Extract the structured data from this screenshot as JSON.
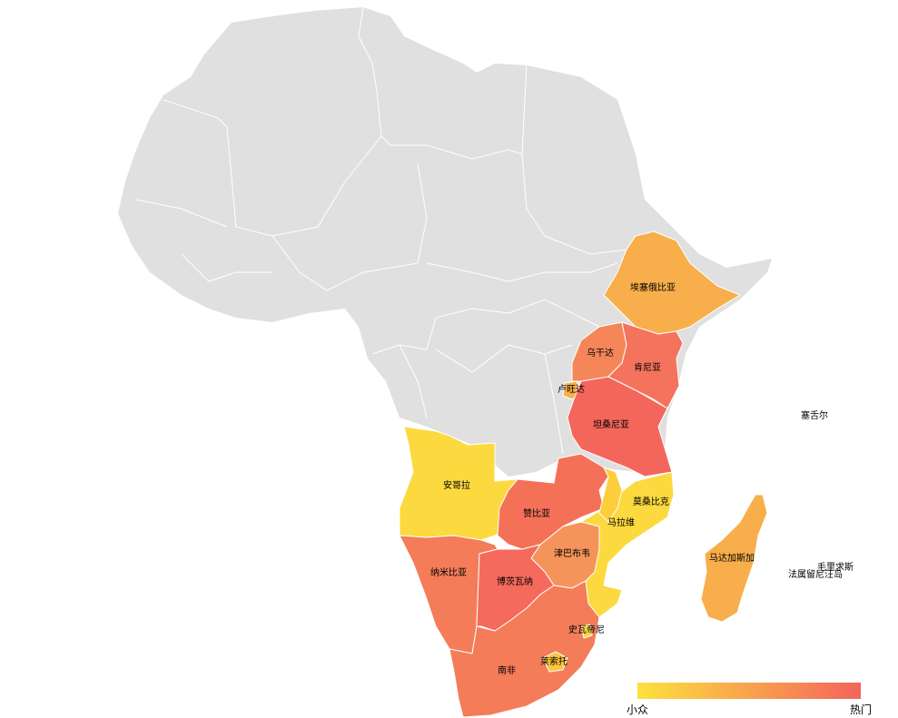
{
  "legend": {
    "low_label": "小众",
    "high_label": "热门",
    "colors": [
      "#fce13e",
      "#f4645c"
    ]
  },
  "countries": [
    {
      "id": "ethiopia",
      "name": "埃塞俄比亚",
      "color": "#f8ae4a"
    },
    {
      "id": "uganda",
      "name": "乌干达",
      "color": "#f4865a"
    },
    {
      "id": "kenya",
      "name": "肯尼亚",
      "color": "#f3735c"
    },
    {
      "id": "rwanda",
      "name": "卢旺达",
      "color": "#f8b14a"
    },
    {
      "id": "tanzania",
      "name": "坦桑尼亚",
      "color": "#f4665c"
    },
    {
      "id": "angola",
      "name": "安哥拉",
      "color": "#fcd93e"
    },
    {
      "id": "zambia",
      "name": "赞比亚",
      "color": "#f47158"
    },
    {
      "id": "mozambique",
      "name": "莫桑比克",
      "color": "#fcd93e"
    },
    {
      "id": "malawi",
      "name": "马拉维",
      "color": "#fcce3c"
    },
    {
      "id": "zimbabwe",
      "name": "津巴布韦",
      "color": "#f5945a"
    },
    {
      "id": "namibia",
      "name": "纳米比亚",
      "color": "#f47c58"
    },
    {
      "id": "botswana",
      "name": "博茨瓦纳",
      "color": "#f46a5c"
    },
    {
      "id": "south_africa",
      "name": "南非",
      "color": "#f47c58"
    },
    {
      "id": "eswatini",
      "name": "史瓦帝尼",
      "color": "#fcd63e"
    },
    {
      "id": "lesotho",
      "name": "莱索托",
      "color": "#fcc63c"
    },
    {
      "id": "madagascar",
      "name": "马达加斯加",
      "color": "#f8ae4a"
    },
    {
      "id": "seychelles",
      "name": "塞舌尔",
      "color": ""
    },
    {
      "id": "mauritius",
      "name": "毛里求斯",
      "color": ""
    },
    {
      "id": "reunion",
      "name": "法属留尼汪岛",
      "color": ""
    }
  ]
}
